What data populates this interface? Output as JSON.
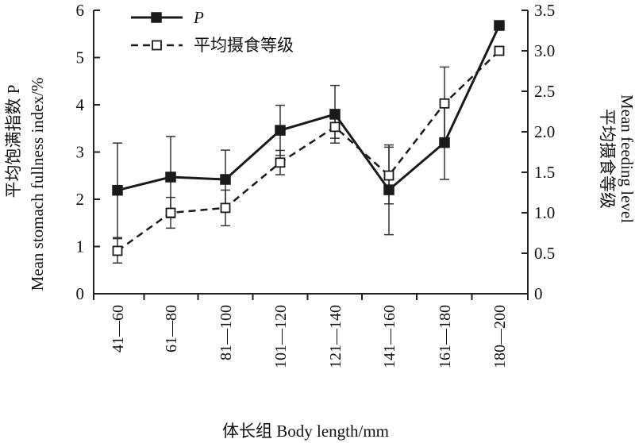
{
  "chart_data": {
    "type": "line",
    "categories": [
      "41—60",
      "61—80",
      "81—100",
      "101—120",
      "121—140",
      "141—160",
      "161—180",
      "180—200"
    ],
    "xlabel": "体长组 Body length/mm",
    "ylabel_left": "平均饱满指数 P Mean stomach fullness index/%",
    "ylabel_left_lines": [
      "平均饱满指数 P",
      "Mean stomach fullness index/%"
    ],
    "ylabel_right": "平均摄食等级 Mean feeding level",
    "ylabel_right_lines": [
      "平均摄食等级",
      "Mean feeding level"
    ],
    "ylim_left": [
      0,
      6
    ],
    "ylim_right": [
      0,
      3.5
    ],
    "yticks_left": [
      "0",
      "1",
      "2",
      "3",
      "4",
      "5",
      "6"
    ],
    "yticks_right": [
      "0",
      "0.5",
      "1.0",
      "1.5",
      "2.0",
      "2.5",
      "3.0",
      "3.5"
    ],
    "legend_position": "top-left",
    "grid": false,
    "series": [
      {
        "name": "P",
        "axis": "left",
        "style": "solid line, filled square markers",
        "values": [
          2.19,
          2.47,
          2.42,
          3.46,
          3.8,
          2.2,
          3.2,
          5.68
        ],
        "error": [
          1.0,
          0.86,
          0.62,
          0.53,
          0.61,
          0.95,
          0.78,
          null
        ]
      },
      {
        "name": "平均摄食等级",
        "axis": "right",
        "style": "dashed line, open square markers",
        "values": [
          0.53,
          1.0,
          1.06,
          1.62,
          2.06,
          1.46,
          2.35,
          3.0
        ],
        "error": [
          0.15,
          0.19,
          0.22,
          0.15,
          0.14,
          0.35,
          0.45,
          null
        ]
      }
    ]
  }
}
